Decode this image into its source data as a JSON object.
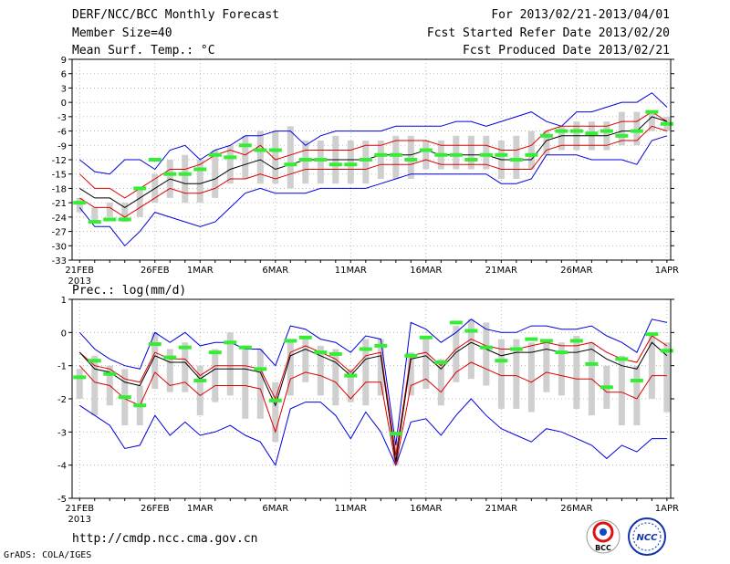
{
  "header": {
    "title": "DERF/NCC/BCC Monthly Forecast",
    "member_size": "Member Size=40",
    "variable": "Mean Surf. Temp.: °C",
    "period": "For 2013/02/21-2013/04/01",
    "fcst_started": "Fcst Started Refer Date 2013/02/20",
    "fcst_produced": "Fcst Produced Date 2013/02/21"
  },
  "footer": {
    "url": "http://cmdp.ncc.cma.gov.cn",
    "grads": "GrADS: COLA/IGES",
    "logo_bcc": "BCC",
    "logo_ncc": "NCC"
  },
  "colors": {
    "spread": "#0000dd",
    "ensemble": "#dd0000",
    "mean": "#000000",
    "box": "#cfcfcf",
    "obs": "#33ee33"
  },
  "chart_data": [
    {
      "type": "line",
      "title": "Mean Surf. Temp.: °C",
      "x_tick_labels": [
        "21FEB",
        "26FEB",
        "1MAR",
        "6MAR",
        "11MAR",
        "16MAR",
        "21MAR",
        "26MAR",
        "1APR"
      ],
      "x_tick_days": [
        0,
        5,
        8,
        13,
        18,
        23,
        28,
        33,
        39
      ],
      "x_year_label": "2013",
      "ylim": [
        -33,
        9
      ],
      "y_ticks": [
        9,
        6,
        3,
        0,
        -3,
        -6,
        -9,
        -12,
        -15,
        -18,
        -21,
        -24,
        -27,
        -30,
        -33
      ],
      "series": [
        {
          "name": "max",
          "values": [
            -12,
            -14.5,
            -15,
            -12,
            -12,
            -14,
            -10,
            -9,
            -12,
            -10,
            -9,
            -7,
            -7,
            -6,
            -6,
            -9,
            -7,
            -6,
            -6,
            -6,
            -6,
            -5,
            -5,
            -5,
            -5,
            -4,
            -4,
            -5,
            -4,
            -3,
            -2,
            -4,
            -5,
            -2,
            -2,
            -1,
            0,
            0,
            2,
            -1
          ]
        },
        {
          "name": "upper",
          "values": [
            -15,
            -18,
            -18,
            -20,
            -18,
            -16,
            -14,
            -14,
            -13,
            -11,
            -10,
            -11,
            -9,
            -12,
            -11,
            -10,
            -10,
            -10,
            -10,
            -9,
            -9,
            -8,
            -8,
            -8,
            -9,
            -9,
            -9,
            -9,
            -10,
            -10,
            -9,
            -6,
            -5,
            -5,
            -5,
            -5,
            -4,
            -4,
            -2,
            -4
          ]
        },
        {
          "name": "mean",
          "values": [
            -18,
            -20,
            -20,
            -22,
            -20,
            -18,
            -16,
            -17,
            -17,
            -16,
            -14,
            -13,
            -12,
            -14,
            -13,
            -12,
            -12,
            -12,
            -12,
            -12,
            -11,
            -11,
            -11,
            -10,
            -11,
            -11,
            -11,
            -11,
            -12,
            -12,
            -12,
            -8,
            -7,
            -7,
            -7,
            -7,
            -6,
            -6,
            -3,
            -4
          ]
        },
        {
          "name": "lower",
          "values": [
            -20,
            -22,
            -22,
            -24,
            -22,
            -20,
            -18,
            -19,
            -19,
            -18,
            -16,
            -16,
            -15,
            -16,
            -15,
            -14,
            -14,
            -14,
            -14,
            -14,
            -13,
            -13,
            -13,
            -12,
            -13,
            -13,
            -13,
            -13,
            -14,
            -14,
            -14,
            -10,
            -9,
            -9,
            -9,
            -9,
            -8,
            -8,
            -5,
            -6
          ]
        },
        {
          "name": "min",
          "values": [
            -22,
            -26,
            -26,
            -30,
            -27,
            -23,
            -24,
            -25,
            -26,
            -25,
            -22,
            -19,
            -18,
            -19,
            -19,
            -19,
            -18,
            -18,
            -18,
            -18,
            -17,
            -16,
            -15,
            -15,
            -15,
            -15,
            -15,
            -15,
            -17,
            -17,
            -16,
            -11,
            -11,
            -11,
            -12,
            -12,
            -12,
            -13,
            -8,
            -7
          ]
        },
        {
          "name": "box_top",
          "values": [
            -20,
            -22,
            -21,
            -21,
            -18,
            -15,
            -12,
            -11,
            -12,
            -10,
            -9,
            -7,
            -6,
            -6,
            -5,
            -8,
            -8,
            -7,
            -8,
            -8,
            -8,
            -7,
            -7,
            -8,
            -8,
            -7,
            -7,
            -7,
            -8,
            -7,
            -6,
            -6,
            -5,
            -4,
            -4,
            -4,
            -2,
            -2,
            -2,
            -3
          ]
        },
        {
          "name": "box_bottom",
          "values": [
            -23,
            -25,
            -24,
            -25,
            -24,
            -21,
            -20,
            -21,
            -21,
            -20,
            -17,
            -16,
            -17,
            -17,
            -18,
            -17,
            -17,
            -17,
            -17,
            -17,
            -16,
            -16,
            -16,
            -14,
            -14,
            -14,
            -14,
            -14,
            -16,
            -16,
            -14,
            -11,
            -10,
            -10,
            -10,
            -10,
            -9,
            -9,
            -6,
            -6
          ]
        },
        {
          "name": "obs",
          "values": [
            -21,
            -25,
            -24.5,
            -24.5,
            -18,
            -12,
            -15,
            -15,
            -14,
            -11,
            -11.5,
            -9,
            -10,
            -10,
            -13,
            -12,
            -12,
            -13,
            -13,
            -12,
            -11,
            -11,
            -12,
            -10,
            -11,
            -11,
            -12,
            -11,
            -11,
            -12,
            -11,
            -7,
            -6,
            -6,
            -6.5,
            -6,
            -7,
            -6,
            -2,
            -4.5
          ]
        }
      ]
    },
    {
      "type": "line",
      "title": "Prec.: log(mm/d)",
      "x_tick_labels": [
        "21FEB",
        "26FEB",
        "1MAR",
        "6MAR",
        "11MAR",
        "16MAR",
        "21MAR",
        "26MAR",
        "1APR"
      ],
      "x_tick_days": [
        0,
        5,
        8,
        13,
        18,
        23,
        28,
        33,
        39
      ],
      "x_year_label": "2013",
      "ylim": [
        -5,
        1
      ],
      "y_ticks": [
        1,
        0,
        -1,
        -2,
        -3,
        -4,
        -5
      ],
      "series": [
        {
          "name": "max",
          "values": [
            0,
            -0.5,
            -0.8,
            -1,
            -1.1,
            0,
            -0.3,
            0,
            -0.4,
            -0.3,
            -0.3,
            -0.5,
            -0.5,
            -1,
            0.2,
            0.1,
            -0.2,
            -0.3,
            -0.6,
            -0.1,
            -0.2,
            -3.4,
            0.3,
            0.1,
            -0.3,
            0,
            0.4,
            0.1,
            0,
            0,
            0.2,
            0.2,
            0.1,
            0.1,
            0.2,
            -0.1,
            -0.3,
            -0.6,
            0.4,
            0.3
          ]
        },
        {
          "name": "upper",
          "values": [
            -0.6,
            -1,
            -1.1,
            -1.4,
            -1.5,
            -0.6,
            -0.8,
            -0.8,
            -1.3,
            -1,
            -1,
            -1,
            -1.1,
            -2,
            -0.6,
            -0.4,
            -0.6,
            -0.8,
            -1.2,
            -0.7,
            -0.6,
            -3.7,
            -0.7,
            -0.6,
            -1,
            -0.5,
            -0.2,
            -0.4,
            -0.5,
            -0.5,
            -0.4,
            -0.3,
            -0.4,
            -0.4,
            -0.3,
            -0.6,
            -0.8,
            -0.9,
            -0.1,
            -0.4
          ]
        },
        {
          "name": "mean",
          "values": [
            -0.6,
            -1.1,
            -1.2,
            -1.5,
            -1.6,
            -0.7,
            -0.9,
            -0.9,
            -1.4,
            -1.1,
            -1.1,
            -1.1,
            -1.2,
            -2.2,
            -0.7,
            -0.5,
            -0.7,
            -0.9,
            -1.3,
            -0.8,
            -0.7,
            -3.9,
            -0.8,
            -0.7,
            -1.1,
            -0.6,
            -0.3,
            -0.5,
            -0.7,
            -0.6,
            -0.6,
            -0.5,
            -0.6,
            -0.6,
            -0.5,
            -0.8,
            -1,
            -1.1,
            -0.3,
            -0.7
          ]
        },
        {
          "name": "lower",
          "values": [
            -1,
            -1.5,
            -1.6,
            -2,
            -2.2,
            -1.2,
            -1.6,
            -1.5,
            -1.9,
            -1.6,
            -1.6,
            -1.6,
            -1.7,
            -3,
            -1.4,
            -1.2,
            -1.3,
            -1.5,
            -2,
            -1.5,
            -1.5,
            -4,
            -1.6,
            -1.4,
            -1.8,
            -1.2,
            -0.9,
            -1.1,
            -1.3,
            -1.3,
            -1.5,
            -1.2,
            -1.3,
            -1.4,
            -1.4,
            -1.8,
            -1.8,
            -2,
            -1.3,
            -1.3
          ]
        },
        {
          "name": "min",
          "values": [
            -2.2,
            -2.5,
            -2.8,
            -3.5,
            -3.4,
            -2.5,
            -3.1,
            -2.7,
            -3.1,
            -3,
            -2.8,
            -3.1,
            -3.3,
            -4,
            -2.3,
            -2.1,
            -2.1,
            -2.5,
            -3.2,
            -2.4,
            -3,
            -4,
            -2.7,
            -2.6,
            -3.1,
            -2.5,
            -2,
            -2.5,
            -2.9,
            -3.1,
            -3.3,
            -2.9,
            -3,
            -3.2,
            -3.4,
            -3.8,
            -3.4,
            -3.6,
            -3.2,
            -3.2
          ]
        },
        {
          "name": "box_top",
          "values": [
            -1.1,
            -0.7,
            -1,
            -1.1,
            -1.6,
            0,
            -0.5,
            -0.3,
            -1,
            -0.5,
            0,
            -0.4,
            -0.5,
            -1.5,
            -0.2,
            -0.1,
            -0.4,
            -0.5,
            -1.1,
            -0.2,
            -0.2,
            -3.3,
            -0.6,
            -0.1,
            -0.8,
            0.2,
            0.4,
            0.3,
            -0.2,
            -0.2,
            -0.3,
            -0.2,
            -0.3,
            -0.1,
            -0.3,
            -1,
            -0.7,
            -1,
            -0.1,
            -0.3
          ]
        },
        {
          "name": "box_bottom",
          "values": [
            -2,
            -2.5,
            -2.2,
            -2.8,
            -2.8,
            -1.7,
            -1.8,
            -1.8,
            -2.5,
            -2.1,
            -1.9,
            -2.6,
            -2.6,
            -3.3,
            -1.9,
            -1.5,
            -1.9,
            -2.2,
            -2.1,
            -2.2,
            -1.9,
            -4,
            -1.9,
            -1.7,
            -2.2,
            -1.5,
            -1.4,
            -1.6,
            -2.3,
            -2.3,
            -2.4,
            -1.8,
            -1.9,
            -2.3,
            -2.5,
            -2.3,
            -2.8,
            -2.8,
            -2,
            -2.4
          ]
        },
        {
          "name": "obs",
          "values": [
            -1.35,
            -0.85,
            -1.25,
            -1.95,
            -2.2,
            -0.35,
            -0.75,
            -0.45,
            -1.45,
            -0.6,
            -0.3,
            -0.45,
            -1.1,
            -2.05,
            -0.25,
            -0.15,
            -0.6,
            -0.65,
            -1.3,
            -0.5,
            -0.4,
            -3.05,
            -0.7,
            -0.15,
            -0.9,
            0.3,
            0.05,
            -0.45,
            -0.85,
            -0.5,
            -0.2,
            -0.25,
            -0.6,
            -0.25,
            -0.95,
            -1.65,
            -0.8,
            -1.45,
            -0.05,
            -0.55
          ]
        }
      ]
    }
  ]
}
